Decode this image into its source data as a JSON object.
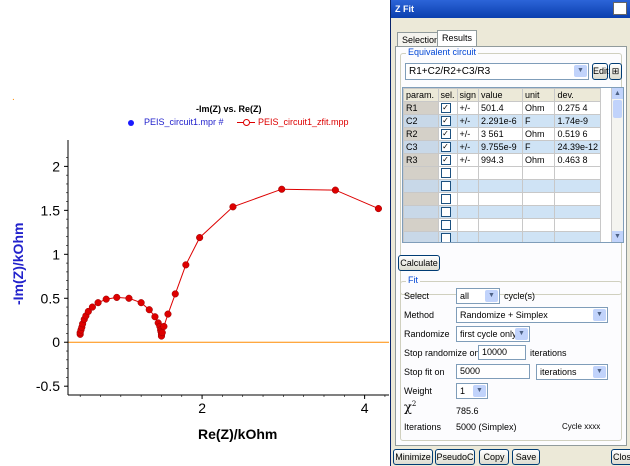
{
  "plot": {
    "orange_marker": ".",
    "title": "-Im(Z) vs. Re(Z)",
    "legend": [
      {
        "label": "PEIS_circuit1.mpr #",
        "color": "#1a1aff"
      },
      {
        "label": "PEIS_circuit1_zfit.mpp",
        "color": "#ff0000"
      }
    ],
    "xlabel": "Re(Z)/kOhm",
    "ylabel": "-Im(Z)/kOhm",
    "x_ticks": [
      "2",
      "4"
    ],
    "y_ticks": [
      "2",
      "1.5",
      "1",
      "0.5",
      "0",
      "-0.5"
    ],
    "colors": {
      "fit": "#dd0000",
      "axis_y": "#1a1aff",
      "zero_line": "#ff8c00"
    }
  },
  "chart_data": {
    "type": "scatter",
    "title": "-Im(Z) vs. Re(Z)",
    "xlabel": "Re(Z)/kOhm",
    "ylabel": "-Im(Z)/kOhm",
    "xlim": [
      0.35,
      4.3
    ],
    "ylim": [
      -0.6,
      2.3
    ],
    "series": [
      {
        "name": "PEIS_circuit1_zfit.mpp",
        "x": [
          0.5,
          0.5,
          0.51,
          0.52,
          0.53,
          0.55,
          0.57,
          0.6,
          0.65,
          0.72,
          0.82,
          0.95,
          1.1,
          1.25,
          1.35,
          1.42,
          1.46,
          1.48,
          1.49,
          1.495,
          1.5,
          1.5,
          1.51,
          1.53,
          1.58,
          1.67,
          1.8,
          1.97,
          2.38,
          2.98,
          3.64,
          4.17
        ],
        "y": [
          0.09,
          0.11,
          0.14,
          0.17,
          0.21,
          0.26,
          0.3,
          0.35,
          0.4,
          0.45,
          0.49,
          0.51,
          0.5,
          0.45,
          0.37,
          0.29,
          0.22,
          0.18,
          0.14,
          0.12,
          0.09,
          0.07,
          0.11,
          0.18,
          0.32,
          0.55,
          0.88,
          1.19,
          1.54,
          1.74,
          1.73,
          1.52
        ]
      }
    ]
  },
  "zfit": {
    "title": "Z Fit",
    "tabs": [
      "Selection",
      "Results"
    ],
    "equivalent_circuit_label": "Equivalent circuit",
    "circuit": "R1+C2/R2+C3/R3",
    "edit_label": "Edit",
    "table": {
      "headers": [
        "param.",
        "sel.",
        "sign",
        "value",
        "unit",
        "dev."
      ],
      "rows": [
        {
          "param": "R1",
          "sign": "+/-",
          "value": "501.4",
          "unit": "Ohm",
          "dev": "0.275 4"
        },
        {
          "param": "C2",
          "sign": "+/-",
          "value": "2.291e-6",
          "unit": "F",
          "dev": "1.74e-9"
        },
        {
          "param": "R2",
          "sign": "+/-",
          "value": "3 561",
          "unit": "Ohm",
          "dev": "0.519 6"
        },
        {
          "param": "C3",
          "sign": "+/-",
          "value": "9.755e-9",
          "unit": "F",
          "dev": "24.39e-12"
        },
        {
          "param": "R3",
          "sign": "+/-",
          "value": "994.3",
          "unit": "Ohm",
          "dev": "0.463 8"
        }
      ],
      "empty_rows": 6
    },
    "calculate_label": "Calculate",
    "fit_label": "Fit",
    "select_label": "Select",
    "select_value": "all",
    "cycles_label": "cycle(s)",
    "method_label": "Method",
    "method_value": "Randomize + Simplex",
    "randomize_label": "Randomize",
    "randomize_value": "first cycle only",
    "stop_randomize_label": "Stop randomize on",
    "stop_randomize_value": "10000",
    "iterations_label": "iterations",
    "stop_fit_label": "Stop fit on",
    "stop_fit_value": "5000",
    "stop_fit_unit": "iterations",
    "weight_label": "Weight",
    "weight_value": "1",
    "chi2_symbol": "χ",
    "chi2_sup": "2",
    "chi2_value": "785.6",
    "iterations_result_label": "Iterations",
    "iterations_result_value": "5000 (Simplex)",
    "cycle_label": "Cycle xxxx",
    "bottom_buttons": [
      "Minimize",
      "PseudoC",
      "Copy",
      "Save",
      "Clos"
    ]
  }
}
